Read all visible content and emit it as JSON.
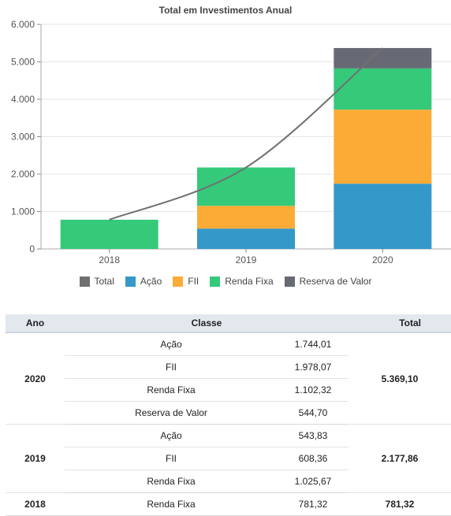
{
  "chart_data": {
    "type": "bar",
    "title": "Total em Investimentos Anual",
    "categories": [
      "2018",
      "2019",
      "2020"
    ],
    "ylim": [
      0,
      6000
    ],
    "yticks": [
      "0",
      "1.000",
      "2.000",
      "3.000",
      "4.000",
      "5.000",
      "6.000"
    ],
    "grid": true,
    "legend_position": "bottom",
    "series": [
      {
        "name": "Ação",
        "color": "#3498c9",
        "values": [
          0,
          543.83,
          1744.01
        ]
      },
      {
        "name": "FII",
        "color": "#fcab36",
        "values": [
          0,
          608.36,
          1978.07
        ]
      },
      {
        "name": "Renda Fixa",
        "color": "#35c97a",
        "values": [
          781.32,
          1025.67,
          1102.32
        ]
      },
      {
        "name": "Reserva de Valor",
        "color": "#676a74",
        "values": [
          0,
          0,
          544.7
        ]
      }
    ],
    "line": {
      "name": "Total",
      "color": "#707070",
      "values": [
        781.32,
        2177.86,
        5369.1
      ]
    },
    "legend": [
      {
        "name": "Total",
        "color": "#707070"
      },
      {
        "name": "Ação",
        "color": "#3498c9"
      },
      {
        "name": "FII",
        "color": "#fcab36"
      },
      {
        "name": "Renda Fixa",
        "color": "#35c97a"
      },
      {
        "name": "Reserva de Valor",
        "color": "#676a74"
      }
    ]
  },
  "table": {
    "headers": {
      "ano": "Ano",
      "classe": "Classe",
      "total": "Total"
    },
    "groups": [
      {
        "ano": "2020",
        "total": "5.369,10",
        "rows": [
          {
            "classe": "Ação",
            "valor": "1.744,01"
          },
          {
            "classe": "FII",
            "valor": "1.978,07"
          },
          {
            "classe": "Renda Fixa",
            "valor": "1.102,32"
          },
          {
            "classe": "Reserva de Valor",
            "valor": "544,70"
          }
        ]
      },
      {
        "ano": "2019",
        "total": "2.177,86",
        "rows": [
          {
            "classe": "Ação",
            "valor": "543,83"
          },
          {
            "classe": "FII",
            "valor": "608,36"
          },
          {
            "classe": "Renda Fixa",
            "valor": "1.025,67"
          }
        ]
      },
      {
        "ano": "2018",
        "total": "781,32",
        "rows": [
          {
            "classe": "Renda Fixa",
            "valor": "781,32"
          }
        ]
      }
    ]
  }
}
